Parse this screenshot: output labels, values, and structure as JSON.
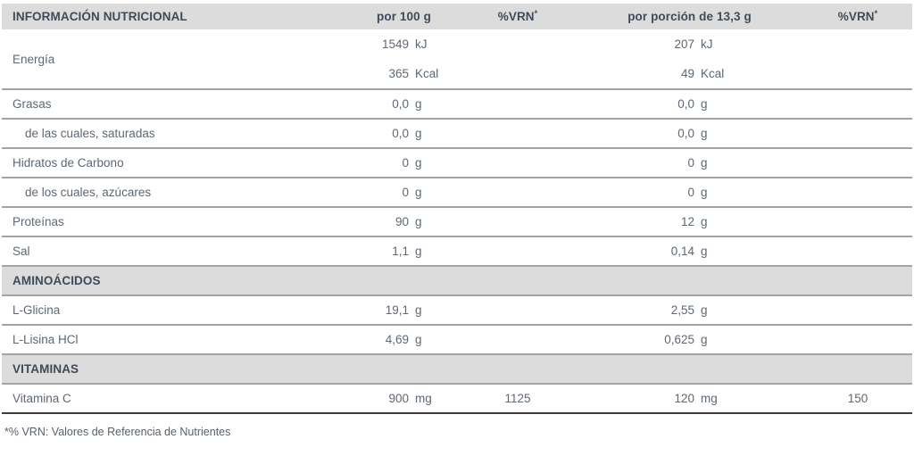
{
  "colors": {
    "band_bg": "#dcdcdc",
    "heading_text": "#3e4b59",
    "body_text": "#5d6874",
    "row_border": "#a3a3a3",
    "table_bottom_border": "#3d3d3d",
    "page_bg": "#ffffff"
  },
  "table": {
    "header": {
      "title": "INFORMACIÓN NUTRICIONAL",
      "col_per100": "por 100 g",
      "col_vrn": "%VRN",
      "vrn_asterisk": "*",
      "col_portion": "por porción de 13,3 g"
    },
    "sections": {
      "aminoacidos": "AMINOÁCIDOS",
      "vitaminas": "VITAMINAS"
    },
    "rows": {
      "energia": {
        "label": "Energía",
        "per100": [
          {
            "num": "1549",
            "unit": "kJ"
          },
          {
            "num": "365",
            "unit": "Kcal"
          }
        ],
        "portion": [
          {
            "num": "207",
            "unit": "kJ"
          },
          {
            "num": "49",
            "unit": "Kcal"
          }
        ]
      },
      "grasas": {
        "label": "Grasas",
        "per100": {
          "num": "0,0",
          "unit": "g"
        },
        "portion": {
          "num": "0,0",
          "unit": "g"
        }
      },
      "saturadas": {
        "label": "de las cuales, saturadas",
        "per100": {
          "num": "0,0",
          "unit": "g"
        },
        "portion": {
          "num": "0,0",
          "unit": "g"
        }
      },
      "hidratos": {
        "label": "Hidratos de Carbono",
        "per100": {
          "num": "0",
          "unit": "g"
        },
        "portion": {
          "num": "0",
          "unit": "g"
        }
      },
      "azucares": {
        "label": "de los cuales, azúcares",
        "per100": {
          "num": "0",
          "unit": "g"
        },
        "portion": {
          "num": "0",
          "unit": "g"
        }
      },
      "proteinas": {
        "label": "Proteínas",
        "per100": {
          "num": "90",
          "unit": "g"
        },
        "portion": {
          "num": "12",
          "unit": "g"
        }
      },
      "sal": {
        "label": "Sal",
        "per100": {
          "num": "1,1",
          "unit": "g"
        },
        "portion": {
          "num": "0,14",
          "unit": "g"
        }
      },
      "glicina": {
        "label": "L-Glicina",
        "per100": {
          "num": "19,1",
          "unit": "g"
        },
        "portion": {
          "num": "2,55",
          "unit": "g"
        }
      },
      "lisina": {
        "label": "L-Lisina HCl",
        "per100": {
          "num": "4,69",
          "unit": "g"
        },
        "portion": {
          "num": "0,625",
          "unit": "g"
        }
      },
      "vitamina_c": {
        "label": "Vitamina C",
        "per100": {
          "num": "900",
          "unit": "mg"
        },
        "vrn100": "1125",
        "portion": {
          "num": "120",
          "unit": "mg"
        },
        "vrn_portion": "150"
      }
    },
    "footnote": "*% VRN: Valores de Referencia de Nutrientes"
  }
}
